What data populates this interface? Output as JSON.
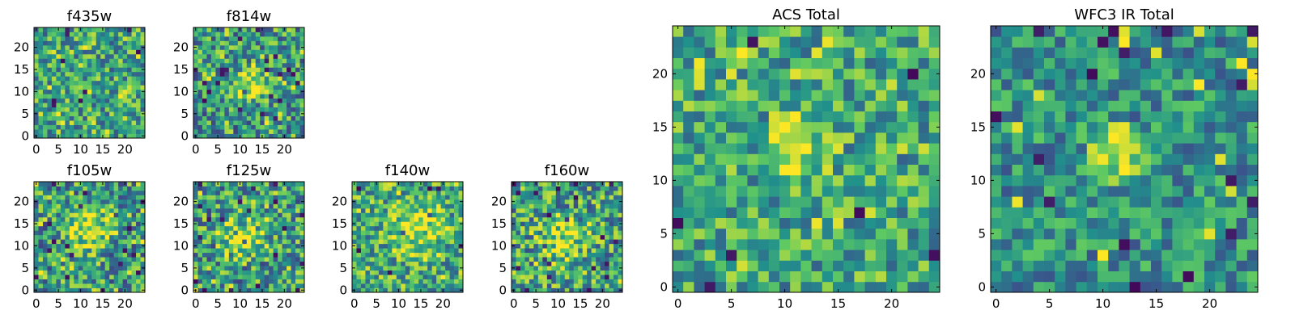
{
  "figure": {
    "background": "#ffffff"
  },
  "colormap": {
    "name": "viridis",
    "stops": [
      "#440154",
      "#3b528b",
      "#21918c",
      "#5ec962",
      "#fde725"
    ]
  },
  "chart_data": [
    {
      "id": "f435w",
      "type": "heatmap",
      "title": "f435w",
      "grid_size": 25,
      "xlim": [
        0,
        24
      ],
      "ylim": [
        0,
        24
      ],
      "xticks": [
        0,
        5,
        10,
        15,
        20
      ],
      "yticks": [
        0,
        5,
        10,
        15,
        20
      ],
      "value_range": [
        0,
        1
      ],
      "mean": 0.58,
      "spread": 0.2,
      "blob": null,
      "seed": 11
    },
    {
      "id": "f814w",
      "type": "heatmap",
      "title": "f814w",
      "grid_size": 25,
      "xlim": [
        0,
        24
      ],
      "ylim": [
        0,
        24
      ],
      "xticks": [
        0,
        5,
        10,
        15,
        20
      ],
      "yticks": [
        0,
        5,
        10,
        15,
        20
      ],
      "value_range": [
        0,
        1
      ],
      "mean": 0.55,
      "spread": 0.22,
      "blob": {
        "x": 12,
        "y": 12,
        "r": 3,
        "amp": 0.25
      },
      "seed": 23
    },
    {
      "id": "f105w",
      "type": "heatmap",
      "title": "f105w",
      "grid_size": 25,
      "xlim": [
        0,
        24
      ],
      "ylim": [
        0,
        24
      ],
      "xticks": [
        0,
        5,
        10,
        15,
        20
      ],
      "yticks": [
        0,
        5,
        10,
        15,
        20
      ],
      "value_range": [
        0,
        1
      ],
      "mean": 0.55,
      "spread": 0.22,
      "blob": {
        "x": 12,
        "y": 14,
        "r": 4,
        "amp": 0.3
      },
      "seed": 37
    },
    {
      "id": "f125w",
      "type": "heatmap",
      "title": "f125w",
      "grid_size": 25,
      "xlim": [
        0,
        24
      ],
      "ylim": [
        0,
        24
      ],
      "xticks": [
        0,
        5,
        10,
        15,
        20
      ],
      "yticks": [
        0,
        5,
        10,
        15,
        20
      ],
      "value_range": [
        0,
        1
      ],
      "mean": 0.55,
      "spread": 0.22,
      "blob": {
        "x": 11,
        "y": 12,
        "r": 4,
        "amp": 0.25
      },
      "seed": 41
    },
    {
      "id": "f140w",
      "type": "heatmap",
      "title": "f140w",
      "grid_size": 25,
      "xlim": [
        0,
        24
      ],
      "ylim": [
        0,
        24
      ],
      "xticks": [
        0,
        5,
        10,
        15,
        20
      ],
      "yticks": [
        0,
        5,
        10,
        15,
        20
      ],
      "value_range": [
        0,
        1
      ],
      "mean": 0.62,
      "spread": 0.2,
      "blob": {
        "x": 14,
        "y": 14,
        "r": 5,
        "amp": 0.25
      },
      "seed": 53
    },
    {
      "id": "f160w",
      "type": "heatmap",
      "title": "f160w",
      "grid_size": 25,
      "xlim": [
        0,
        24
      ],
      "ylim": [
        0,
        24
      ],
      "xticks": [
        0,
        5,
        10,
        15,
        20
      ],
      "yticks": [
        0,
        5,
        10,
        15,
        20
      ],
      "value_range": [
        0,
        1
      ],
      "mean": 0.58,
      "spread": 0.22,
      "blob": {
        "x": 11,
        "y": 11,
        "r": 4,
        "amp": 0.25
      },
      "seed": 67
    },
    {
      "id": "acs-total",
      "type": "heatmap",
      "title": "ACS Total",
      "grid_size": 25,
      "xlim": [
        0,
        24
      ],
      "ylim": [
        0,
        24
      ],
      "xticks": [
        0,
        5,
        10,
        15,
        20
      ],
      "yticks": [
        0,
        5,
        10,
        15,
        20
      ],
      "value_range": [
        0,
        1
      ],
      "mean": 0.6,
      "spread": 0.18,
      "blob": {
        "x": 11,
        "y": 13,
        "r": 2.5,
        "amp": 0.3
      },
      "seed": 79
    },
    {
      "id": "wfc3-ir-total",
      "type": "heatmap",
      "title": "WFC3 IR Total",
      "grid_size": 25,
      "xlim": [
        0,
        24
      ],
      "ylim": [
        0,
        24
      ],
      "xticks": [
        0,
        5,
        10,
        15,
        20
      ],
      "yticks": [
        0,
        5,
        10,
        15,
        20
      ],
      "value_range": [
        0,
        1
      ],
      "mean": 0.5,
      "spread": 0.16,
      "blob": {
        "x": 11.5,
        "y": 12.5,
        "r": 2,
        "amp": 0.5
      },
      "seed": 97
    }
  ]
}
